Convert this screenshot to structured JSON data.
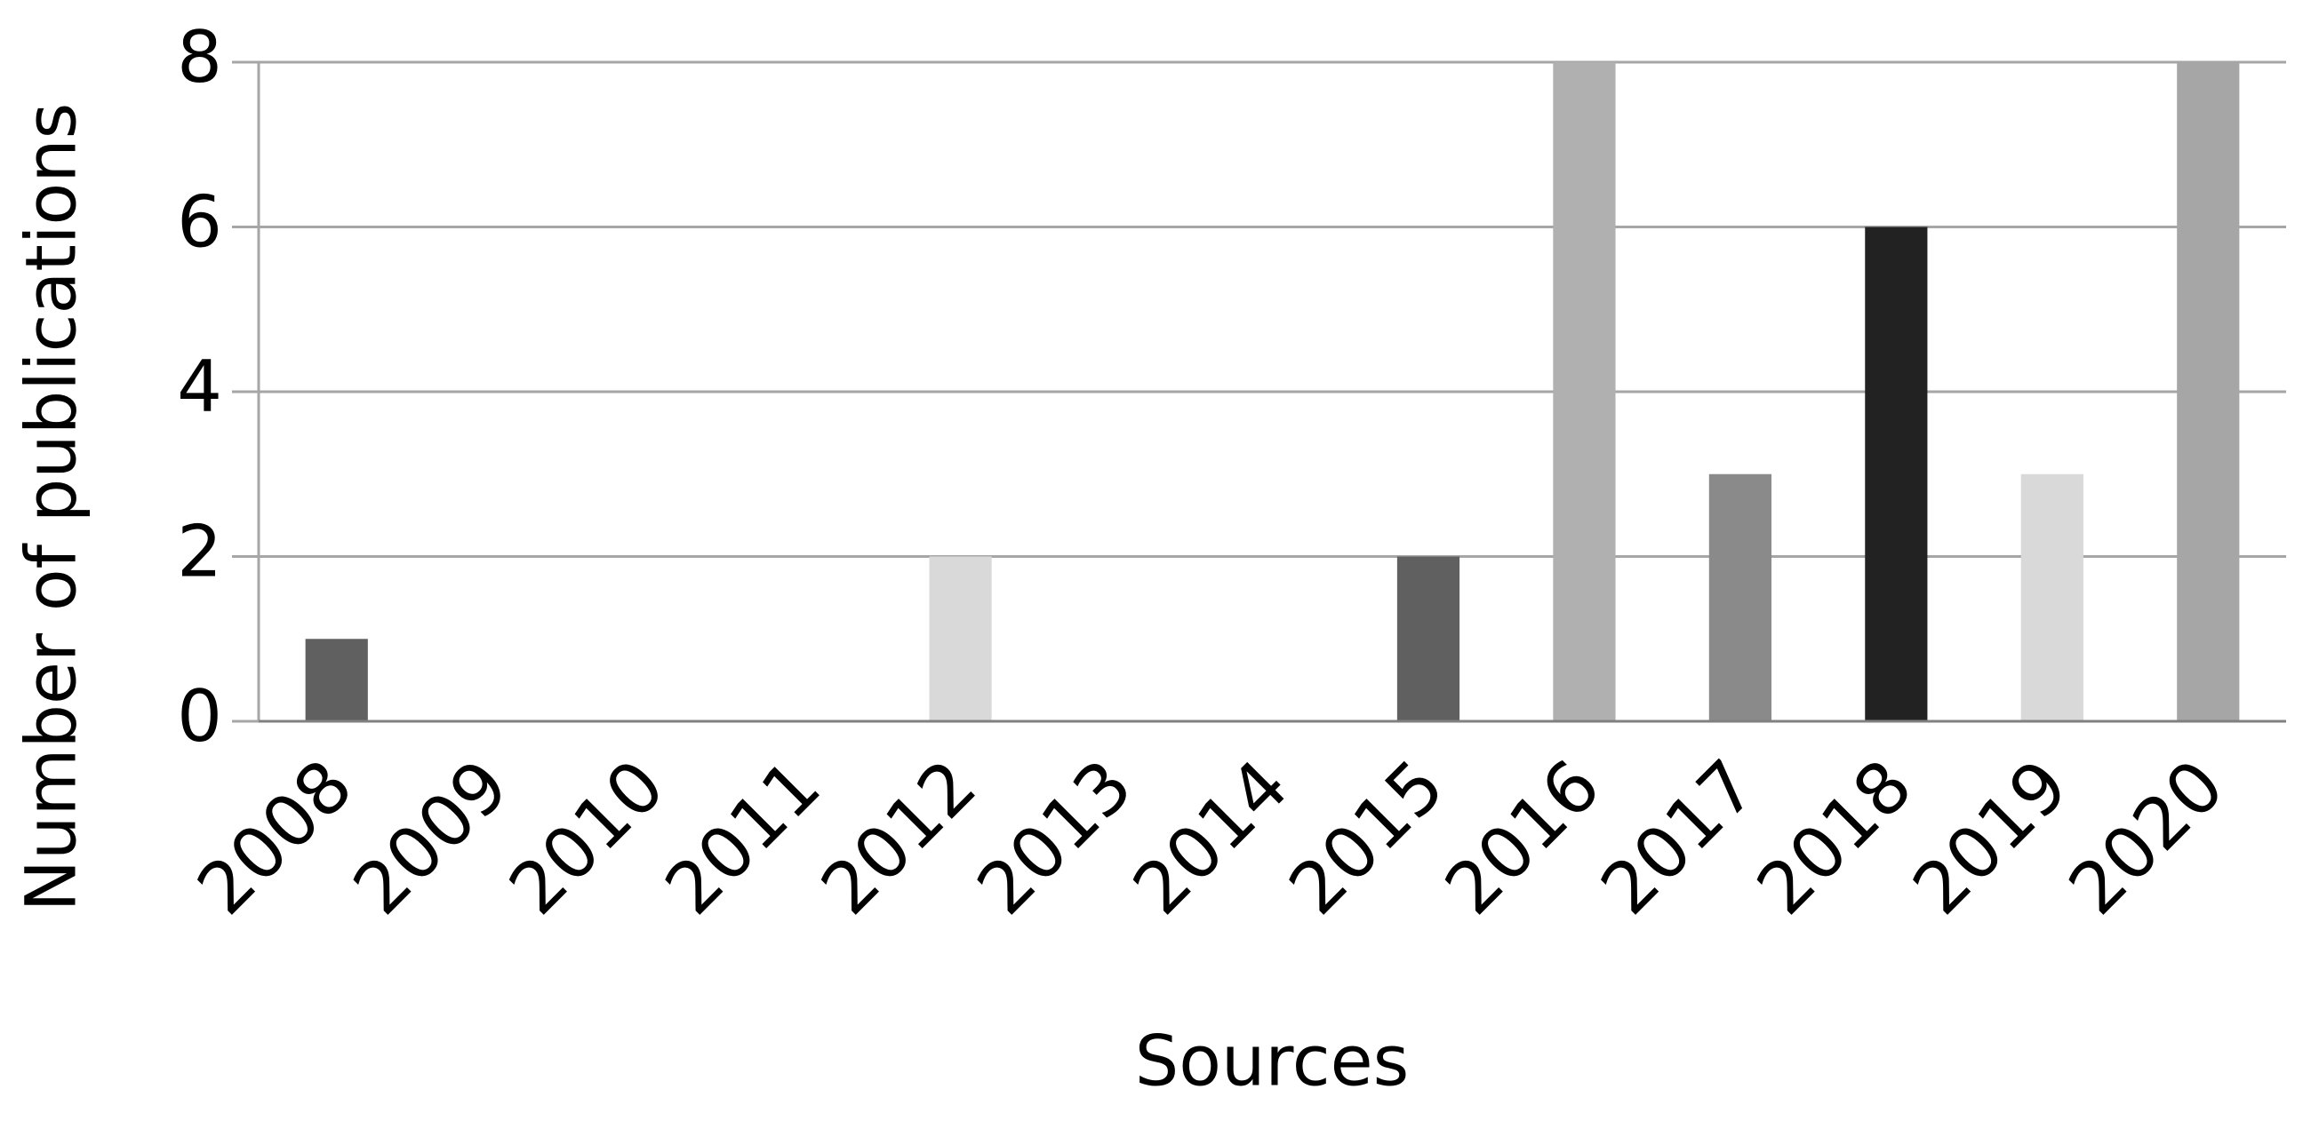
{
  "chart_data": {
    "type": "bar",
    "y_label": "Number of publications",
    "x_label": "Sources",
    "categories": [
      "2008",
      "2009",
      "2010",
      "2011",
      "2012",
      "2013",
      "2014",
      "2015",
      "2016",
      "2017",
      "2018",
      "2019",
      "2020"
    ],
    "values": [
      1,
      0,
      0,
      0,
      2,
      0,
      0,
      2,
      8,
      3,
      6,
      3,
      8
    ],
    "colors": [
      "#606060",
      "#b0b0b0",
      "#8a8a8a",
      "#222222",
      "#d9d9d9",
      "#a6a6a6",
      "#606060",
      "#606060",
      "#b0b0b0",
      "#8a8a8a",
      "#222222",
      "#d9d9d9",
      "#a6a6a6"
    ],
    "ylim": [
      0,
      8
    ],
    "yticks": [
      0,
      2,
      4,
      6,
      8
    ],
    "grid": true
  }
}
